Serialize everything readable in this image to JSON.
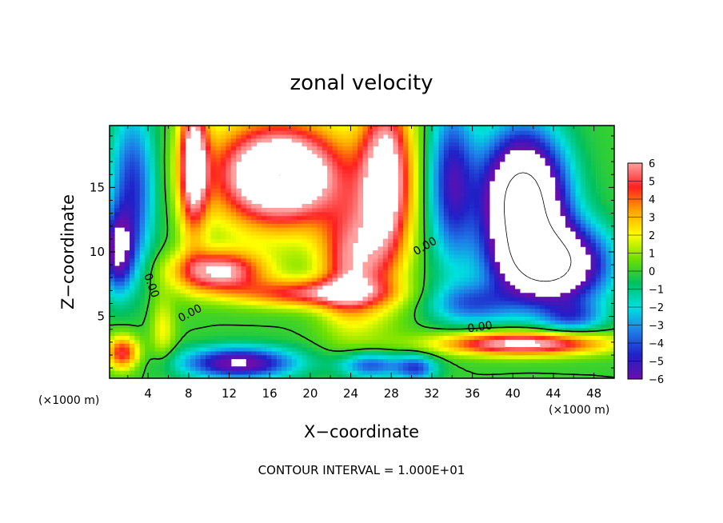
{
  "chart_data": {
    "type": "heatmap",
    "title": "zonal velocity",
    "xlabel": "X−coordinate",
    "ylabel": "Z−coordinate",
    "x_unit": "(×1000 m)",
    "y_unit": "(×1000 m)",
    "xlim": [
      0.2,
      50
    ],
    "ylim": [
      0.2,
      19.8
    ],
    "x_ticks": [
      "4",
      "8",
      "12",
      "16",
      "20",
      "24",
      "28",
      "32",
      "36",
      "40",
      "44",
      "48"
    ],
    "y_ticks": [
      "5",
      "10",
      "15"
    ],
    "colorbar": {
      "range": [
        -6,
        6
      ],
      "ticks": [
        "6",
        "5",
        "4",
        "3",
        "2",
        "1",
        "0",
        "−1",
        "−2",
        "−3",
        "−4",
        "−5",
        "−6"
      ],
      "stops": [
        "#6a0dad",
        "#2020c8",
        "#1e7ee8",
        "#00e0e0",
        "#00c060",
        "#6ee000",
        "#ffff00",
        "#ffa500",
        "#ff2020",
        "#ffa0a0"
      ]
    },
    "contour_labels": [
      {
        "text": "0.00",
        "x": 4.0,
        "z": 7.3,
        "angle": 70
      },
      {
        "text": "0.00",
        "x": 8.3,
        "z": 5.0,
        "angle": -28
      },
      {
        "text": "0.00",
        "x": 31.5,
        "z": 10.2,
        "angle": -30
      },
      {
        "text": "0.00",
        "x": 36.8,
        "z": 3.9,
        "angle": -8
      }
    ],
    "contour_interval_note": "CONTOUR INTERVAL = 1.000E+01"
  }
}
